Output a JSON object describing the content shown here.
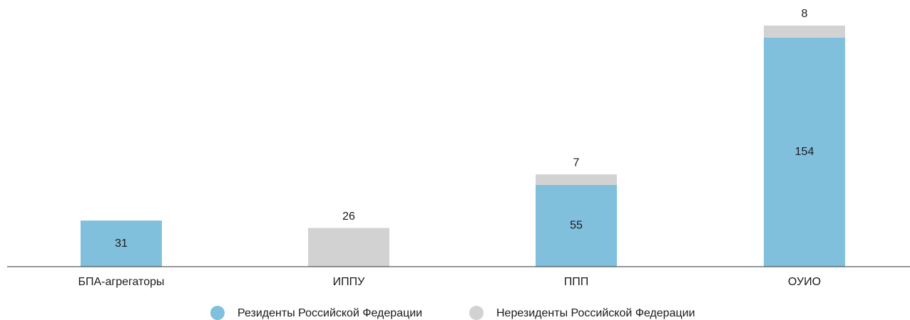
{
  "chart_data": {
    "type": "stacked_bar",
    "categories": [
      "БПА-агрегаторы",
      "ИППУ",
      "ППП",
      "ОУИО"
    ],
    "series": [
      {
        "name": "Резиденты Российской Федерации",
        "color": "#80c0dd",
        "values": [
          31,
          null,
          55,
          154
        ]
      },
      {
        "name": "Нерезиденты Российской Федерации",
        "color": "#d2d2d2",
        "values": [
          null,
          26,
          7,
          8
        ]
      }
    ]
  }
}
